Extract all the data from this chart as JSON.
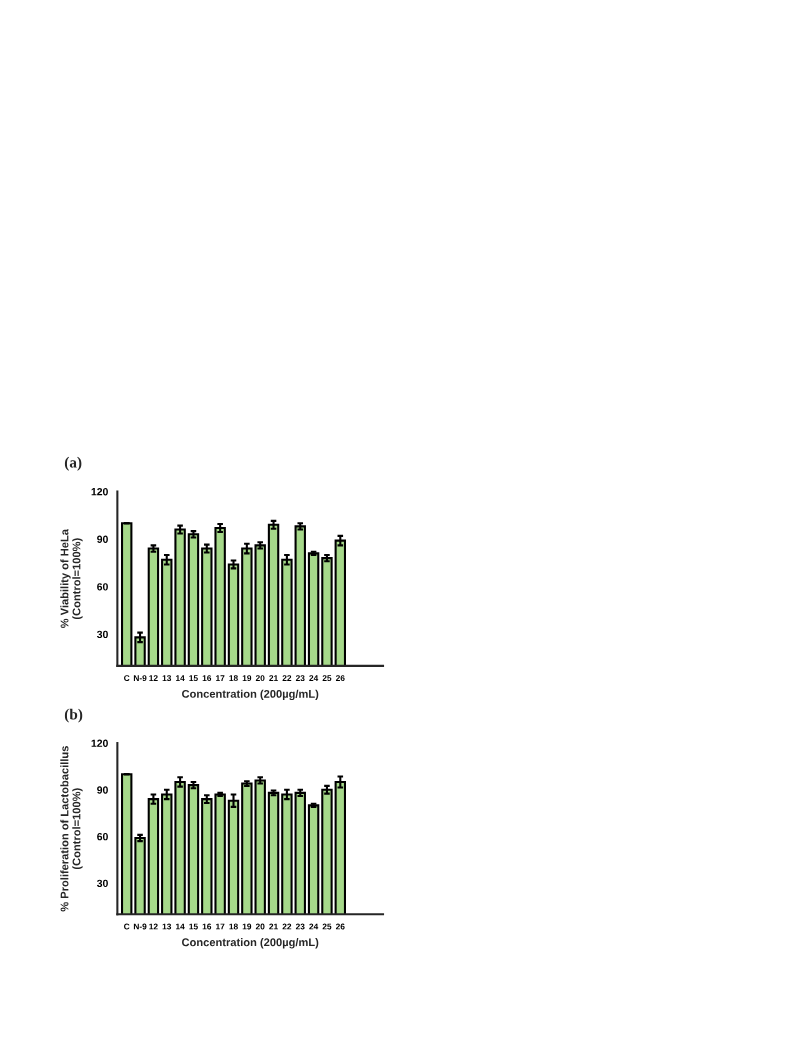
{
  "chart_data": [
    {
      "type": "bar",
      "title": "(a)",
      "xlabel": "Concentration (200µg/mL)",
      "ylabel": "% Viability of HeLa\n(Control=100%)",
      "categories": [
        "C",
        "N-9",
        "12",
        "13",
        "14",
        "15",
        "16",
        "17",
        "18",
        "19",
        "20",
        "21",
        "22",
        "23",
        "24",
        "25",
        "26"
      ],
      "series": [
        {
          "color": "#a6d98a",
          "values": [
            100,
            28,
            84,
            77,
            96,
            93,
            84,
            97,
            74,
            84,
            86,
            99,
            77,
            98,
            81,
            78,
            89
          ],
          "errors": [
            0,
            3,
            2,
            3,
            2.5,
            2,
            2.5,
            2.5,
            2.5,
            3,
            2,
            2.5,
            3,
            2,
            1,
            2,
            3
          ]
        }
      ],
      "ylim": [
        10,
        120
      ],
      "yticks": [
        30,
        60,
        90,
        120
      ],
      "grid": false
    },
    {
      "type": "bar",
      "title": "(b)",
      "xlabel": "Concentration (200µg/mL)",
      "ylabel": "% Proliferation of Lactobacillus\n(Control=100%)",
      "categories": [
        "C",
        "N-9",
        "12",
        "13",
        "14",
        "15",
        "16",
        "17",
        "18",
        "19",
        "20",
        "21",
        "22",
        "23",
        "24",
        "25",
        "26"
      ],
      "series": [
        {
          "color": "#a6d98a",
          "values": [
            100,
            59,
            84,
            87,
            95,
            93,
            84,
            87,
            83,
            94,
            96,
            88,
            87,
            88,
            80,
            90,
            95
          ],
          "errors": [
            0,
            2,
            3,
            3,
            3,
            2,
            2.5,
            1,
            4,
            1.5,
            2,
            1.5,
            3,
            2,
            1,
            2.5,
            3.5
          ]
        }
      ],
      "ylim": [
        10,
        120
      ],
      "yticks": [
        30,
        60,
        90,
        120
      ],
      "grid": false
    }
  ]
}
